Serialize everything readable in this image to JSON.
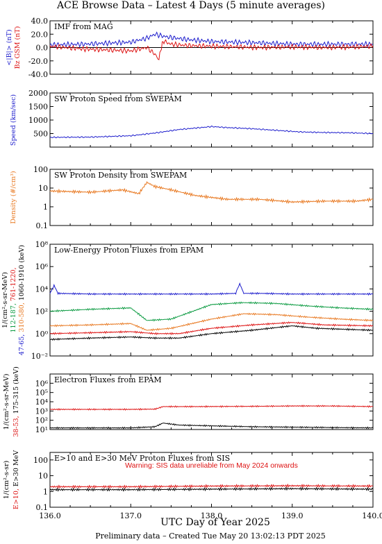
{
  "title": "ACE Browse Data – Latest 4 Days (5 minute averages)",
  "xlabel": "UTC Day of Year 2025",
  "footer": "Preliminary data – Created Tue May 20 13:02:13 PDT 2025",
  "x_ticks": [
    "136.0",
    "137.0",
    "138.0",
    "139.0",
    "140.0"
  ],
  "colors": {
    "blue": "#1a1acc",
    "red": "#dd1111",
    "orange": "#e87820",
    "green": "#0a9a40",
    "black": "#000000"
  },
  "chart_data": [
    {
      "type": "line",
      "title": "IMF from MAG",
      "xlim": [
        136.0,
        140.0
      ],
      "ylim": [
        -40,
        40
      ],
      "ytick_labels": [
        "40.0",
        "20.0",
        "0.0",
        "-20.0",
        "-40.0"
      ],
      "ylabel_parts": [
        {
          "text": "<|B|> (nT)",
          "color": "#1a1acc"
        },
        {
          "text": "Bz GSM (nT)",
          "color": "#dd1111"
        }
      ],
      "series": [
        {
          "color": "#1a1acc",
          "x": [
            136.0,
            136.4,
            136.8,
            137.0,
            137.2,
            137.3,
            137.4,
            137.5,
            137.7,
            138.0,
            138.3,
            138.6,
            139.0,
            139.4,
            139.8,
            140.0
          ],
          "y": [
            4,
            5,
            7,
            8,
            14,
            20,
            17,
            15,
            12,
            9,
            8,
            7,
            5,
            5,
            5,
            5
          ]
        },
        {
          "color": "#dd1111",
          "x": [
            136.0,
            136.4,
            136.8,
            137.0,
            137.2,
            137.3,
            137.35,
            137.4,
            137.5,
            137.7,
            138.0,
            138.3,
            138.6,
            139.0,
            139.4,
            139.8,
            140.0
          ],
          "y": [
            2,
            -2,
            -4,
            -5,
            0,
            -10,
            -15,
            10,
            5,
            3,
            2,
            1,
            0,
            1,
            0,
            1,
            2
          ]
        }
      ]
    },
    {
      "type": "line",
      "title": "SW Proton Speed from SWEPAM",
      "xlim": [
        136.0,
        140.0
      ],
      "ylim": [
        0,
        2000
      ],
      "ytick_labels": [
        "2000",
        "1500",
        "1000",
        "500"
      ],
      "ylabel_parts": [
        {
          "text": "Speed (km/sec)",
          "color": "#1a1acc"
        }
      ],
      "series": [
        {
          "color": "#1a1acc",
          "x": [
            136.0,
            136.5,
            137.0,
            137.3,
            137.6,
            137.9,
            138.0,
            138.2,
            138.5,
            138.8,
            139.1,
            139.4,
            139.7,
            140.0
          ],
          "y": [
            360,
            370,
            420,
            520,
            650,
            730,
            760,
            720,
            680,
            620,
            560,
            540,
            530,
            500
          ]
        }
      ]
    },
    {
      "type": "line",
      "title": "SW Proton Density from SWEPAM",
      "xlim": [
        136.0,
        140.0
      ],
      "ylim": [
        0.1,
        100
      ],
      "scale": "log",
      "ytick_labels": [
        "100",
        "10",
        "1",
        "0.1"
      ],
      "ylabel_parts": [
        {
          "text": "Density (#/cm³)",
          "color": "#e87820"
        }
      ],
      "series": [
        {
          "color": "#e87820",
          "x": [
            136.0,
            136.5,
            136.9,
            137.1,
            137.2,
            137.3,
            137.5,
            137.8,
            138.2,
            138.6,
            139.0,
            139.4,
            139.8,
            140.0
          ],
          "y": [
            7,
            6,
            8,
            5,
            20,
            12,
            8,
            4,
            2.5,
            2.5,
            1.8,
            2,
            2,
            2.5
          ]
        }
      ]
    },
    {
      "type": "line",
      "title": "Low-Energy Proton Fluxes from EPAM",
      "xlim": [
        136.0,
        140.0
      ],
      "ylim": [
        0.01,
        100000000
      ],
      "scale": "log",
      "ytick_labels": [
        "10⁸",
        "10⁶",
        "10⁴",
        "10²",
        "10⁰",
        "10⁻²"
      ],
      "ylabel_parts": [
        {
          "text": "1/(cm²-s-sr-MeV)",
          "color": "#000000"
        },
        {
          "text": "47-65,",
          "color": "#1a1acc"
        },
        {
          "text": "112-187,",
          "color": "#0a9a40"
        },
        {
          "text": "310-580,",
          "color": "#e87820"
        },
        {
          "text": "761-1220,",
          "color": "#dd1111"
        },
        {
          "text": "1060-1910 (keV)",
          "color": "#000000"
        }
      ],
      "series": [
        {
          "color": "#1a1acc",
          "x": [
            136.0,
            136.05,
            136.1,
            136.5,
            137.0,
            137.5,
            138.0,
            138.3,
            138.35,
            138.4,
            138.6,
            139.0,
            139.5,
            140.0
          ],
          "y": [
            4000,
            20000,
            4000,
            3500,
            3500,
            3500,
            3500,
            4000,
            30000,
            4000,
            4000,
            3500,
            3500,
            3500
          ]
        },
        {
          "color": "#0a9a40",
          "x": [
            136.0,
            136.5,
            137.0,
            137.2,
            137.5,
            138.0,
            138.4,
            138.8,
            139.2,
            139.6,
            140.0
          ],
          "y": [
            100,
            150,
            200,
            15,
            20,
            400,
            600,
            500,
            300,
            200,
            150
          ]
        },
        {
          "color": "#e87820",
          "x": [
            136.0,
            136.5,
            137.0,
            137.2,
            137.5,
            138.0,
            138.4,
            138.8,
            139.2,
            139.6,
            140.0
          ],
          "y": [
            5,
            6,
            8,
            2,
            3,
            20,
            60,
            50,
            30,
            20,
            15
          ]
        },
        {
          "color": "#dd1111",
          "x": [
            136.0,
            136.5,
            137.0,
            137.3,
            137.6,
            138.0,
            138.5,
            139.0,
            139.4,
            140.0
          ],
          "y": [
            1,
            1.2,
            1.5,
            1,
            1,
            3,
            6,
            10,
            6,
            5
          ]
        },
        {
          "color": "#000000",
          "x": [
            136.0,
            136.5,
            137.0,
            137.3,
            137.6,
            138.0,
            138.5,
            139.0,
            139.3,
            140.0
          ],
          "y": [
            0.3,
            0.4,
            0.5,
            0.4,
            0.4,
            1,
            2,
            5,
            3,
            2
          ]
        }
      ]
    },
    {
      "type": "line",
      "title": "Electron Fluxes from EPAM",
      "xlim": [
        136.0,
        140.0
      ],
      "ylim": [
        10,
        10000000
      ],
      "scale": "log",
      "ytick_labels": [
        "10⁶",
        "10⁵",
        "10⁴",
        "10³",
        "10²",
        "10¹"
      ],
      "ylabel_parts": [
        {
          "text": "1/(cm²-s-sr-MeV)",
          "color": "#000000"
        },
        {
          "text": "38-53,",
          "color": "#dd1111"
        },
        {
          "text": "175-315 (keV)",
          "color": "#000000"
        }
      ],
      "series": [
        {
          "color": "#dd1111",
          "x": [
            136.0,
            136.5,
            137.0,
            137.3,
            137.4,
            137.8,
            138.5,
            139.0,
            139.5,
            140.0
          ],
          "y": [
            1500,
            1500,
            1500,
            1600,
            3000,
            3000,
            3200,
            3500,
            3500,
            3000
          ]
        },
        {
          "color": "#000000",
          "x": [
            136.0,
            136.5,
            137.0,
            137.3,
            137.4,
            137.6,
            138.0,
            138.5,
            139.0,
            140.0
          ],
          "y": [
            15,
            15,
            15,
            20,
            50,
            30,
            25,
            20,
            18,
            15
          ]
        }
      ]
    },
    {
      "type": "line",
      "title": "E>10 and E>30 MeV Proton Fluxes from SIS",
      "xlim": [
        136.0,
        140.0
      ],
      "ylim": [
        0.1,
        300
      ],
      "scale": "log",
      "ytick_labels": [
        "100",
        "10",
        "1",
        "0.1"
      ],
      "ylabel_parts": [
        {
          "text": "1/(cm²-s-sr)",
          "color": "#000000"
        },
        {
          "text": "E>10,",
          "color": "#dd1111"
        },
        {
          "text": "E>30 MeV",
          "color": "#000000"
        }
      ],
      "annotation": {
        "text": "Warning: SIS data unreliable from May 2024 onwards",
        "color": "#dd1111"
      },
      "series": [
        {
          "color": "#dd1111",
          "x": [
            136.0,
            137.0,
            138.0,
            139.0,
            140.0
          ],
          "y": [
            2,
            2,
            2.2,
            2.3,
            2.2
          ]
        },
        {
          "color": "#000000",
          "x": [
            136.0,
            137.0,
            138.0,
            139.0,
            140.0
          ],
          "y": [
            1.3,
            1.3,
            1.4,
            1.5,
            1.4
          ]
        }
      ]
    }
  ]
}
